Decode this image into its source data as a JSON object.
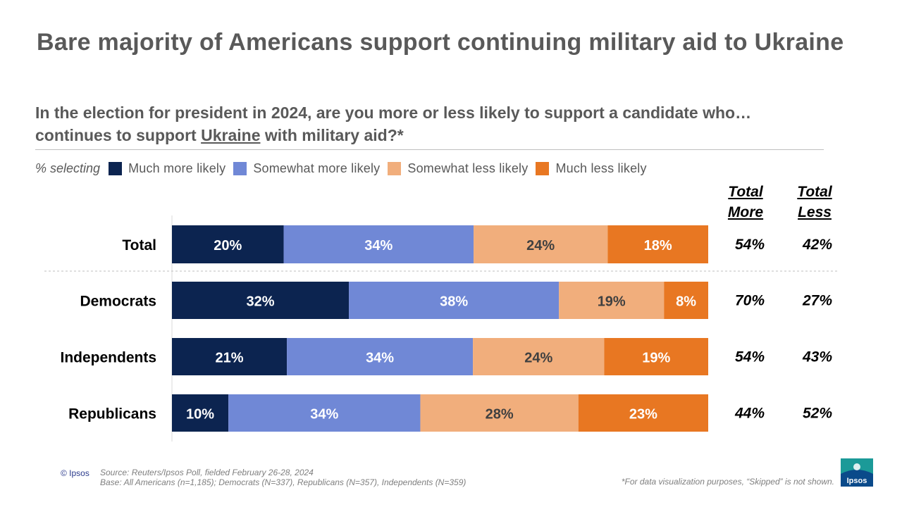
{
  "title": "Bare majority of Americans support continuing military aid to Ukraine",
  "subtitle": {
    "line1": "In the election for president in 2024, are you more or less likely to support a candidate who…",
    "line2_pre": "continues to support ",
    "line2_underlined": "Ukraine",
    "line2_post": " with military aid?*"
  },
  "legend": {
    "lead": "% selecting",
    "items": [
      {
        "label": "Much more likely",
        "color": "#0c2450"
      },
      {
        "label": "Somewhat more likely",
        "color": "#7088d6"
      },
      {
        "label": "Somewhat less likely",
        "color": "#f1ae7c"
      },
      {
        "label": "Much less likely",
        "color": "#e87722"
      }
    ]
  },
  "columns": {
    "total_more": "Total More",
    "total_less": "Total Less"
  },
  "chart_data": {
    "type": "bar",
    "orientation": "horizontal",
    "stacked": true,
    "unit": "%",
    "xlim": [
      0,
      100
    ],
    "categories": [
      "Total",
      "Democrats",
      "Independents",
      "Republicans"
    ],
    "series": [
      {
        "name": "Much more likely",
        "color": "#0c2450",
        "values": [
          20,
          32,
          21,
          10
        ]
      },
      {
        "name": "Somewhat more likely",
        "color": "#7088d6",
        "values": [
          34,
          38,
          34,
          34
        ]
      },
      {
        "name": "Somewhat less likely",
        "color": "#f1ae7c",
        "values": [
          24,
          19,
          24,
          28
        ]
      },
      {
        "name": "Much less likely",
        "color": "#e87722",
        "values": [
          18,
          8,
          19,
          23
        ]
      }
    ],
    "total_more": [
      54,
      70,
      54,
      44
    ],
    "total_less": [
      42,
      27,
      43,
      52
    ]
  },
  "footer": {
    "copyright": "© Ipsos",
    "source": "Source: Reuters/Ipsos Poll, fielded February 26-28, 2024",
    "base": "Base: All Americans (n=1,185); Democrats (N=337), Republicans (N=357), Independents (N=359)",
    "footnote": "*For data visualization purposes, “Skipped” is not shown.",
    "logo_text": "Ipsos"
  }
}
